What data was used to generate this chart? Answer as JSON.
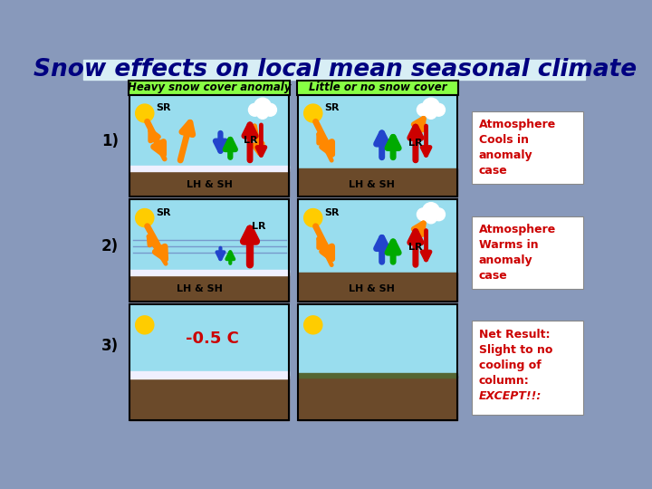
{
  "title": "Snow effects on local mean seasonal climate",
  "title_bg": "#d8eef5",
  "title_color": "#000080",
  "title_fontsize": 19,
  "bg_color_top": "#8899bb",
  "bg_color_bot": "#7788aa",
  "label_heavy": "Heavy snow cover anomaly",
  "label_little": "Little or no snow cover",
  "label_box_color": "#88ff44",
  "row_labels": [
    "1)",
    "2)",
    "3)"
  ],
  "right_texts_1": [
    "Atmosphere",
    "Cools in",
    "anomaly",
    "case"
  ],
  "right_texts_2": [
    "Atmosphere",
    "Warms in",
    "anomaly",
    "case"
  ],
  "right_texts_3": [
    "Net Result:",
    "Slight to no",
    "cooling of",
    "column:",
    "EXCEPT!!:"
  ],
  "annotation_color": "#cc0000",
  "temp_text": "-0.5 C",
  "temp_color": "#cc0000",
  "sky_color": "#99ddee",
  "ground_color": "#6b4a2a",
  "snow_color": "#f0f0ff",
  "sun_color": "#ffcc00",
  "cloud_color": "#ffffff",
  "orange": "#ff8800",
  "blue": "#2244cc",
  "green": "#00aa00",
  "red": "#cc0000",
  "hline_color": "#7799cc"
}
